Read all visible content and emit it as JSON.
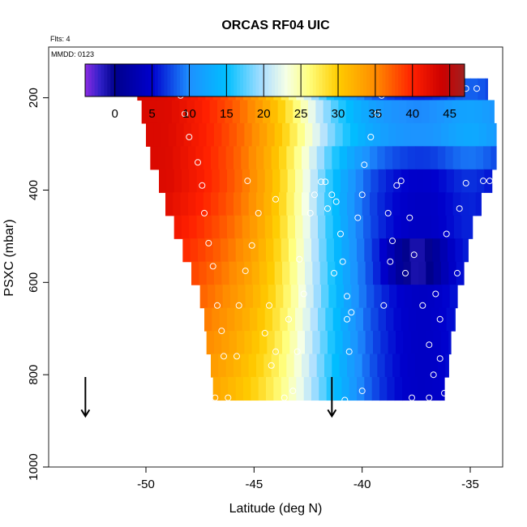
{
  "chart_data": {
    "type": "heatmap",
    "title": "ORCAS RF04 UIC",
    "flts_label": "Flts: 4",
    "mmdd_label": "MMDD: 0123",
    "xlabel": "Latitude (deg N)",
    "ylabel": "PSXC (mbar)",
    "xlim": [
      -54.5,
      -33.5
    ],
    "ylim": [
      1000,
      90
    ],
    "y_reversed": true,
    "grid": false,
    "x_ticks": [
      -50,
      -45,
      -40,
      -35
    ],
    "x_tick_labels": [
      "-50",
      "-45",
      "-40",
      "-35"
    ],
    "y_ticks": [
      200,
      400,
      600,
      800,
      1000
    ],
    "y_tick_labels": [
      "200",
      "400",
      "600",
      "800",
      "1000"
    ],
    "colorbar": {
      "placement": "top",
      "range": [
        -4,
        47
      ],
      "ticks": [
        0,
        5,
        10,
        15,
        20,
        25,
        30,
        35,
        40,
        45
      ],
      "tick_labels": [
        "0",
        "5",
        "10",
        "15",
        "20",
        "25",
        "30",
        "35",
        "40",
        "45"
      ],
      "color_stops": [
        [
          -4,
          "#8b2be2"
        ],
        [
          -2,
          "#3020c8"
        ],
        [
          0,
          "#00008b"
        ],
        [
          5,
          "#0000cd"
        ],
        [
          10,
          "#1e90ff"
        ],
        [
          15,
          "#00bfff"
        ],
        [
          20,
          "#b0e0ff"
        ],
        [
          23,
          "#f5ffe6"
        ],
        [
          26,
          "#ffff80"
        ],
        [
          30,
          "#ffcc00"
        ],
        [
          35,
          "#ff8c00"
        ],
        [
          40,
          "#ff2000"
        ],
        [
          44,
          "#cc0000"
        ],
        [
          47,
          "#a02020"
        ]
      ]
    },
    "pressure_levels": [
      180,
      230,
      280,
      330,
      380,
      430,
      480,
      530,
      580,
      630,
      680,
      730,
      780,
      830
    ],
    "row_lat_min": [
      -50.4,
      -50.2,
      -50.0,
      -49.8,
      -49.4,
      -49.1,
      -48.7,
      -48.3,
      -47.9,
      -47.5,
      -47.3,
      -47.2,
      -47.0,
      -46.9
    ],
    "row_lat_max": [
      -34.2,
      -33.9,
      -33.8,
      -33.8,
      -34.0,
      -34.5,
      -34.9,
      -35.1,
      -35.3,
      -35.6,
      -35.7,
      -35.9,
      -36.0,
      -36.2
    ],
    "feature_values": {
      "warm_max": 43,
      "cool_min": 3,
      "core_min": -3,
      "core_lat": -37.5,
      "core_pressure": 555
    },
    "markers": {
      "arrow_latitudes": [
        -52.8,
        -41.4
      ],
      "arrow_pressure_top": 805,
      "arrow_pressure_bottom": 890,
      "points": [
        [
          -50.3,
          180
        ],
        [
          -49.9,
          180
        ],
        [
          -49.5,
          180
        ],
        [
          -49.1,
          180
        ],
        [
          -48.7,
          180
        ],
        [
          -48.4,
          195
        ],
        [
          -48.2,
          235
        ],
        [
          -48.0,
          285
        ],
        [
          -47.6,
          340
        ],
        [
          -47.4,
          390
        ],
        [
          -47.3,
          450
        ],
        [
          -47.1,
          515
        ],
        [
          -46.9,
          565
        ],
        [
          -46.7,
          650
        ],
        [
          -46.5,
          705
        ],
        [
          -46.4,
          760
        ],
        [
          -46.8,
          850
        ],
        [
          -46.2,
          850
        ],
        [
          -45.3,
          380
        ],
        [
          -44.8,
          450
        ],
        [
          -45.1,
          520
        ],
        [
          -45.4,
          575
        ],
        [
          -45.7,
          650
        ],
        [
          -45.8,
          760
        ],
        [
          -44.5,
          710
        ],
        [
          -44.0,
          750
        ],
        [
          -44.2,
          780
        ],
        [
          -43.6,
          850
        ],
        [
          -44.0,
          420
        ],
        [
          -44.3,
          650
        ],
        [
          -43.4,
          680
        ],
        [
          -43.0,
          750
        ],
        [
          -43.2,
          835
        ],
        [
          -42.2,
          410
        ],
        [
          -42.4,
          450
        ],
        [
          -42.9,
          550
        ],
        [
          -42.7,
          625
        ],
        [
          -41.9,
          382
        ],
        [
          -41.7,
          382
        ],
        [
          -41.4,
          410
        ],
        [
          -41.2,
          425
        ],
        [
          -41.6,
          440
        ],
        [
          -41.0,
          495
        ],
        [
          -40.9,
          555
        ],
        [
          -41.3,
          580
        ],
        [
          -40.7,
          630
        ],
        [
          -40.5,
          665
        ],
        [
          -40.7,
          680
        ],
        [
          -40.6,
          750
        ],
        [
          -40.8,
          855
        ],
        [
          -40.0,
          835
        ],
        [
          -40.2,
          460
        ],
        [
          -40.0,
          410
        ],
        [
          -39.9,
          345
        ],
        [
          -39.6,
          285
        ],
        [
          -39.3,
          235
        ],
        [
          -39.1,
          195
        ],
        [
          -38.8,
          180
        ],
        [
          -38.2,
          180
        ],
        [
          -37.6,
          180
        ],
        [
          -37.0,
          180
        ],
        [
          -36.4,
          180
        ],
        [
          -35.8,
          180
        ],
        [
          -35.2,
          180
        ],
        [
          -34.7,
          180
        ],
        [
          -38.8,
          450
        ],
        [
          -38.4,
          390
        ],
        [
          -38.2,
          380
        ],
        [
          -37.8,
          460
        ],
        [
          -38.6,
          510
        ],
        [
          -38.7,
          555
        ],
        [
          -37.6,
          540
        ],
        [
          -38.0,
          580
        ],
        [
          -39.0,
          650
        ],
        [
          -37.2,
          650
        ],
        [
          -36.9,
          735
        ],
        [
          -35.6,
          580
        ],
        [
          -36.1,
          495
        ],
        [
          -35.5,
          440
        ],
        [
          -34.4,
          380
        ],
        [
          -34.1,
          380
        ],
        [
          -35.2,
          385
        ],
        [
          -34.9,
          545
        ],
        [
          -36.6,
          625
        ],
        [
          -36.4,
          680
        ],
        [
          -36.4,
          765
        ],
        [
          -36.7,
          800
        ],
        [
          -37.7,
          850
        ],
        [
          -36.9,
          850
        ],
        [
          -36.2,
          840
        ]
      ]
    }
  }
}
